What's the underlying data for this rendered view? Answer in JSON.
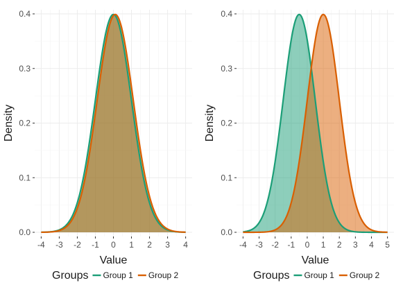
{
  "chart_data": [
    {
      "type": "area",
      "xlabel": "Value",
      "ylabel": "Density",
      "xlim": [
        -4,
        4
      ],
      "ylim": [
        0,
        0.4
      ],
      "x_ticks": [
        "-4",
        "-3",
        "-2",
        "-1",
        "0",
        "1",
        "2",
        "3",
        "4"
      ],
      "y_ticks": [
        "0.0",
        "0.1",
        "0.2",
        "0.3",
        "0.4"
      ],
      "grid": true,
      "legend_title": "Groups",
      "legend_position": "bottom",
      "series": [
        {
          "name": "Group 1",
          "distribution": "normal",
          "mean": 0,
          "sd": 1,
          "peak_density": 0.4,
          "color": "#1b9e77"
        },
        {
          "name": "Group 2",
          "distribution": "normal",
          "mean": 0.1,
          "sd": 1,
          "peak_density": 0.4,
          "color": "#d95f02"
        }
      ]
    },
    {
      "type": "area",
      "xlabel": "Value",
      "ylabel": "Density",
      "xlim": [
        -4,
        5
      ],
      "ylim": [
        0,
        0.4
      ],
      "x_ticks": [
        "-4",
        "-3",
        "-2",
        "-1",
        "0",
        "1",
        "2",
        "3",
        "4",
        "5"
      ],
      "y_ticks": [
        "0.0",
        "0.1",
        "0.2",
        "0.3",
        "0.4"
      ],
      "grid": true,
      "legend_title": "Groups",
      "legend_position": "bottom",
      "series": [
        {
          "name": "Group 1",
          "distribution": "normal",
          "mean": -0.5,
          "sd": 1,
          "peak_density": 0.4,
          "color": "#1b9e77"
        },
        {
          "name": "Group 2",
          "distribution": "normal",
          "mean": 1,
          "sd": 1,
          "peak_density": 0.4,
          "color": "#d95f02"
        }
      ]
    }
  ]
}
